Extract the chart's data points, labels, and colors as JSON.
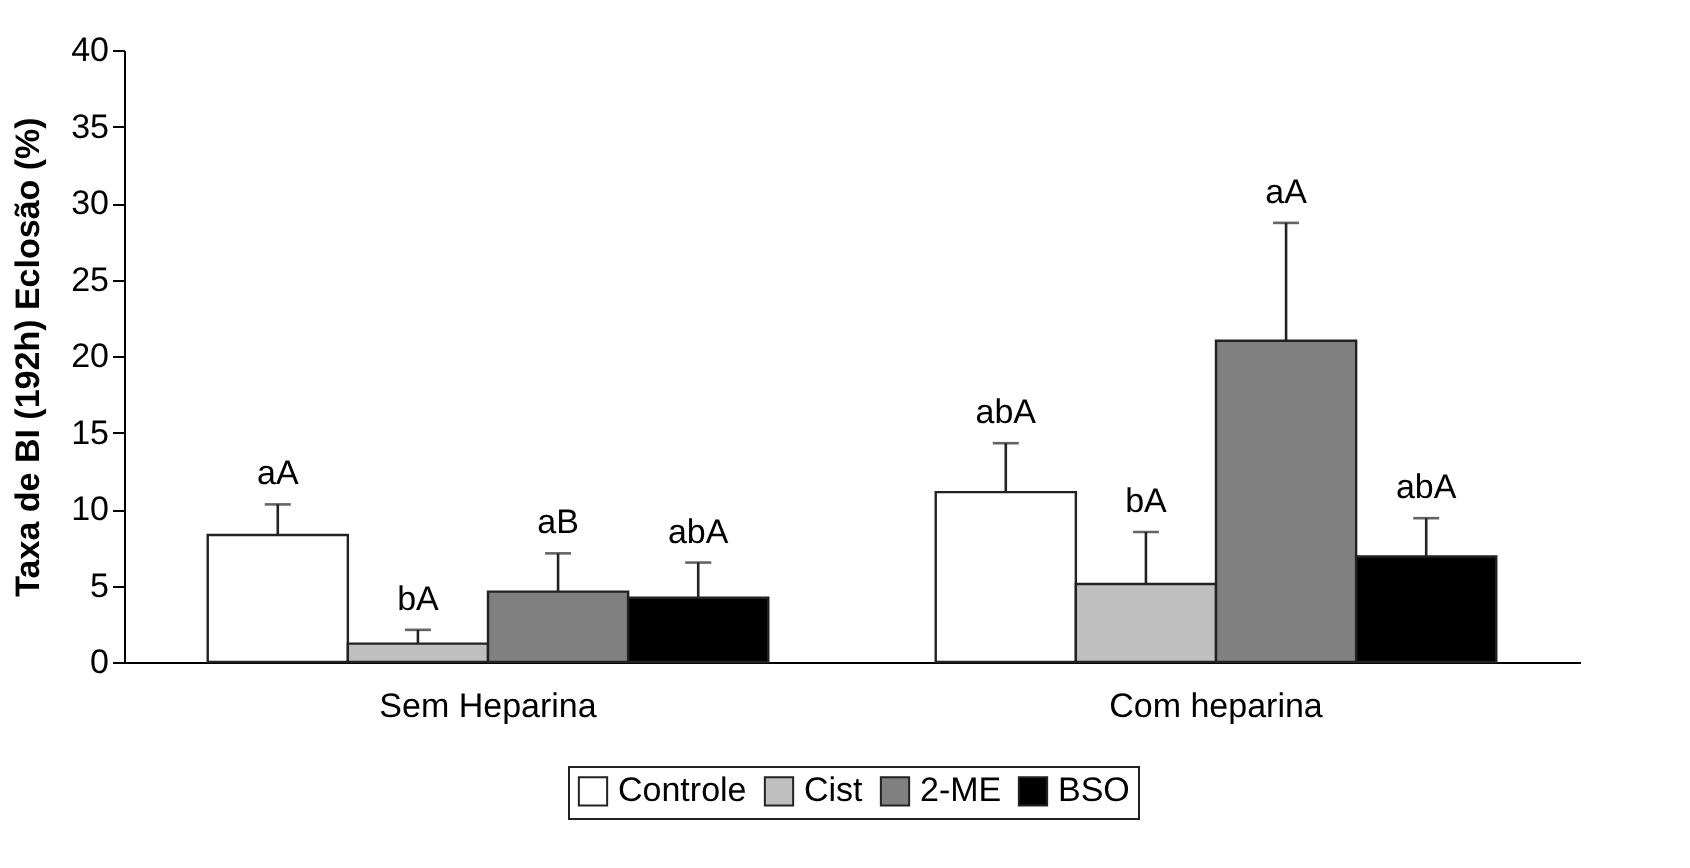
{
  "chart_data": {
    "type": "bar",
    "ylabel": "Taxa de BI (192h) Eclosão (%)",
    "categories": [
      "Sem Heparina",
      "Com heparina"
    ],
    "series": [
      {
        "name": "Controle",
        "color": "#ffffff",
        "values": [
          8.3,
          11.1
        ],
        "errors": [
          [
            8.3,
            10.3
          ],
          [
            11.1,
            14.3
          ]
        ]
      },
      {
        "name": "Cist",
        "color": "#c0c0c0",
        "values": [
          1.2,
          5.1
        ],
        "errors": [
          [
            1.2,
            2.1
          ],
          [
            5.1,
            8.5
          ]
        ]
      },
      {
        "name": "2-ME",
        "color": "#808080",
        "values": [
          4.6,
          21.0
        ],
        "errors": [
          [
            4.6,
            7.1
          ],
          [
            21.0,
            28.7
          ]
        ]
      },
      {
        "name": "BSO",
        "color": "#000000",
        "values": [
          4.2,
          6.9
        ],
        "errors": [
          [
            4.2,
            6.5
          ],
          [
            6.9,
            9.4
          ]
        ]
      }
    ],
    "annotations": [
      "aA",
      "bA",
      "aB",
      "abA",
      "abA",
      "bA",
      "aA",
      "abA"
    ],
    "ylim": [
      0,
      40
    ],
    "yticks": [
      0,
      5,
      10,
      15,
      20,
      25,
      30,
      35,
      40
    ],
    "grid": false,
    "legend": "bottom"
  }
}
